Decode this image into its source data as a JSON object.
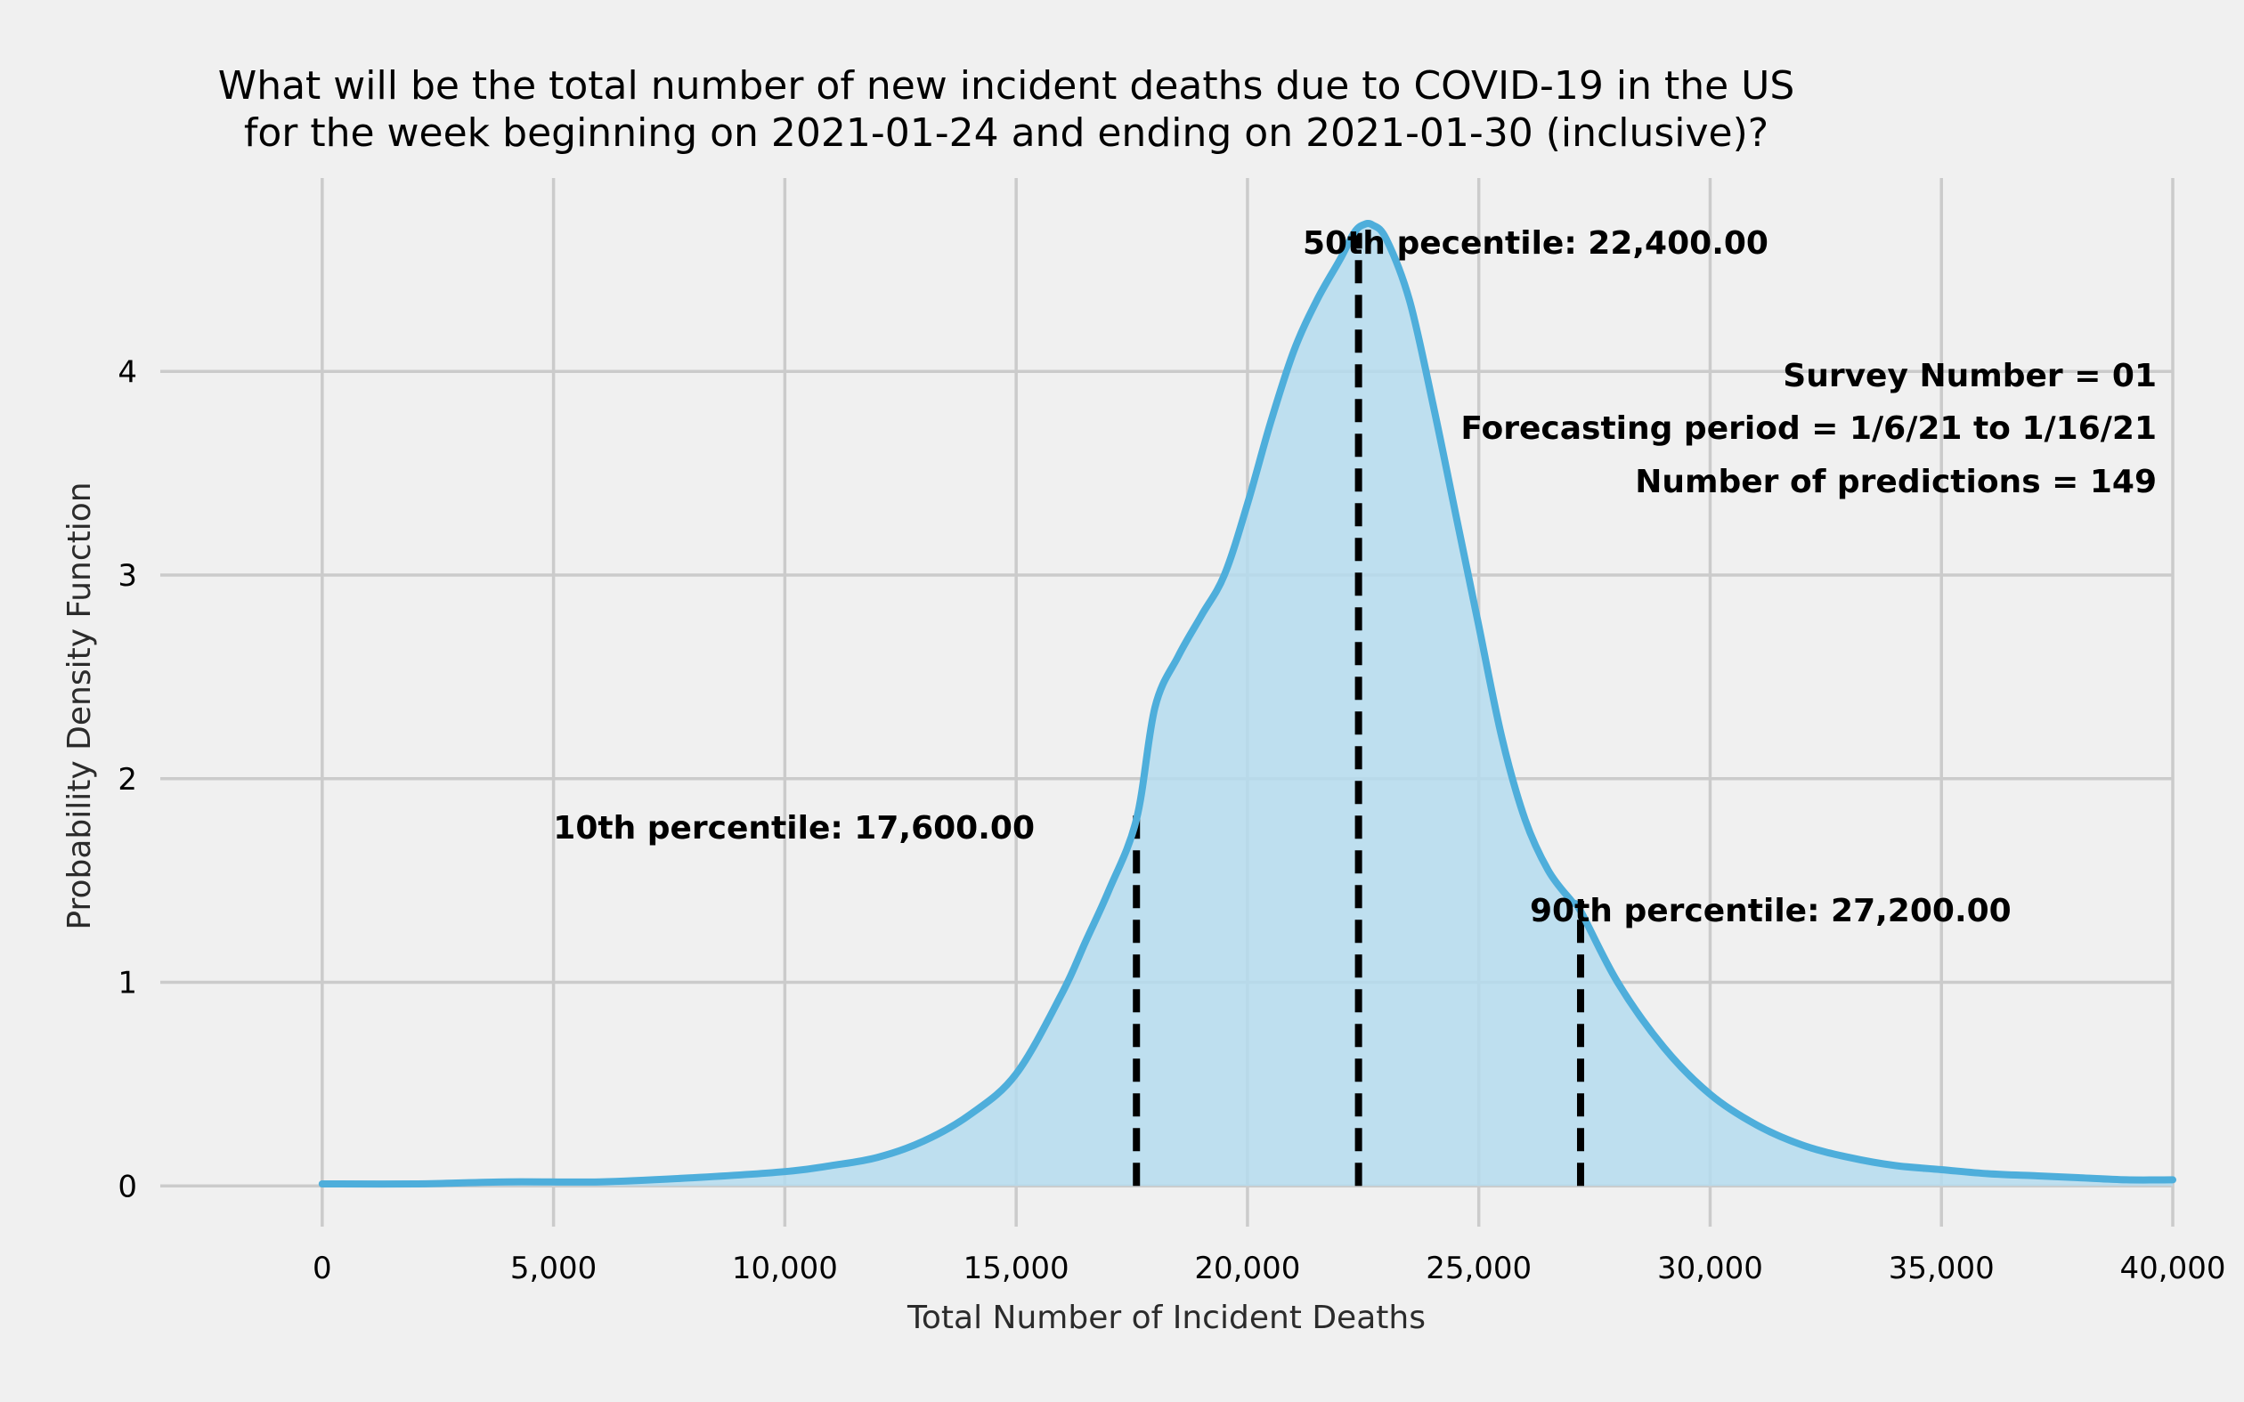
{
  "chart_data": {
    "type": "area",
    "title": [
      "What will be the total number of new incident deaths due to COVID-19 in the US",
      "for the week beginning on 2021-01-24 and ending on 2021-01-30 (inclusive)?"
    ],
    "xlabel": "Total Number of Incident Deaths",
    "ylabel": "Probability Density Function",
    "xlim": [
      -3500,
      40000
    ],
    "ylim": [
      -0.2,
      4.95
    ],
    "xticks": [
      0,
      5000,
      10000,
      15000,
      20000,
      25000,
      30000,
      35000,
      40000
    ],
    "xtick_labels": [
      "0",
      "5,000",
      "10,000",
      "15,000",
      "20,000",
      "25,000",
      "30,000",
      "35,000",
      "40,000"
    ],
    "yticks": [
      0,
      1,
      2,
      3,
      4
    ],
    "ytick_labels": [
      "0",
      "1",
      "2",
      "3",
      "4"
    ],
    "grid": true,
    "line_color": "#4eaedb",
    "fill_color": "#b5dcee",
    "series": [
      {
        "x": [
          0,
          2000,
          4000,
          6000,
          8000,
          10000,
          11000,
          12000,
          13000,
          14000,
          15000,
          16000,
          16500,
          17000,
          17600,
          18000,
          18500,
          19000,
          19500,
          20000,
          20500,
          21000,
          21500,
          22000,
          22300,
          22500,
          22700,
          23000,
          23500,
          24000,
          24500,
          25000,
          25500,
          26000,
          26500,
          27000,
          27200,
          28000,
          29000,
          30000,
          31000,
          32000,
          33000,
          34000,
          35000,
          36000,
          37000,
          38000,
          39000,
          40000
        ],
        "y": [
          0.01,
          0.01,
          0.02,
          0.02,
          0.04,
          0.07,
          0.1,
          0.14,
          0.22,
          0.35,
          0.55,
          0.95,
          1.2,
          1.45,
          1.8,
          2.35,
          2.6,
          2.8,
          3.0,
          3.35,
          3.75,
          4.1,
          4.35,
          4.55,
          4.68,
          4.72,
          4.72,
          4.65,
          4.35,
          3.85,
          3.3,
          2.75,
          2.2,
          1.8,
          1.55,
          1.4,
          1.35,
          1.0,
          0.68,
          0.45,
          0.3,
          0.2,
          0.14,
          0.1,
          0.08,
          0.06,
          0.05,
          0.04,
          0.03,
          0.03
        ]
      }
    ],
    "percentiles": [
      {
        "x": 17600,
        "y": 1.84,
        "label": "10th percentile: 17,600.00"
      },
      {
        "x": 22400,
        "y": 4.68,
        "label": "50th pecentile: 22,400.00"
      },
      {
        "x": 27200,
        "y": 1.4,
        "label": "90th percentile: 27,200.00"
      }
    ],
    "info_lines": [
      "Survey Number = 01",
      "Forecasting period = 1/6/21 to 1/16/21",
      "Number of predictions = 149"
    ]
  }
}
